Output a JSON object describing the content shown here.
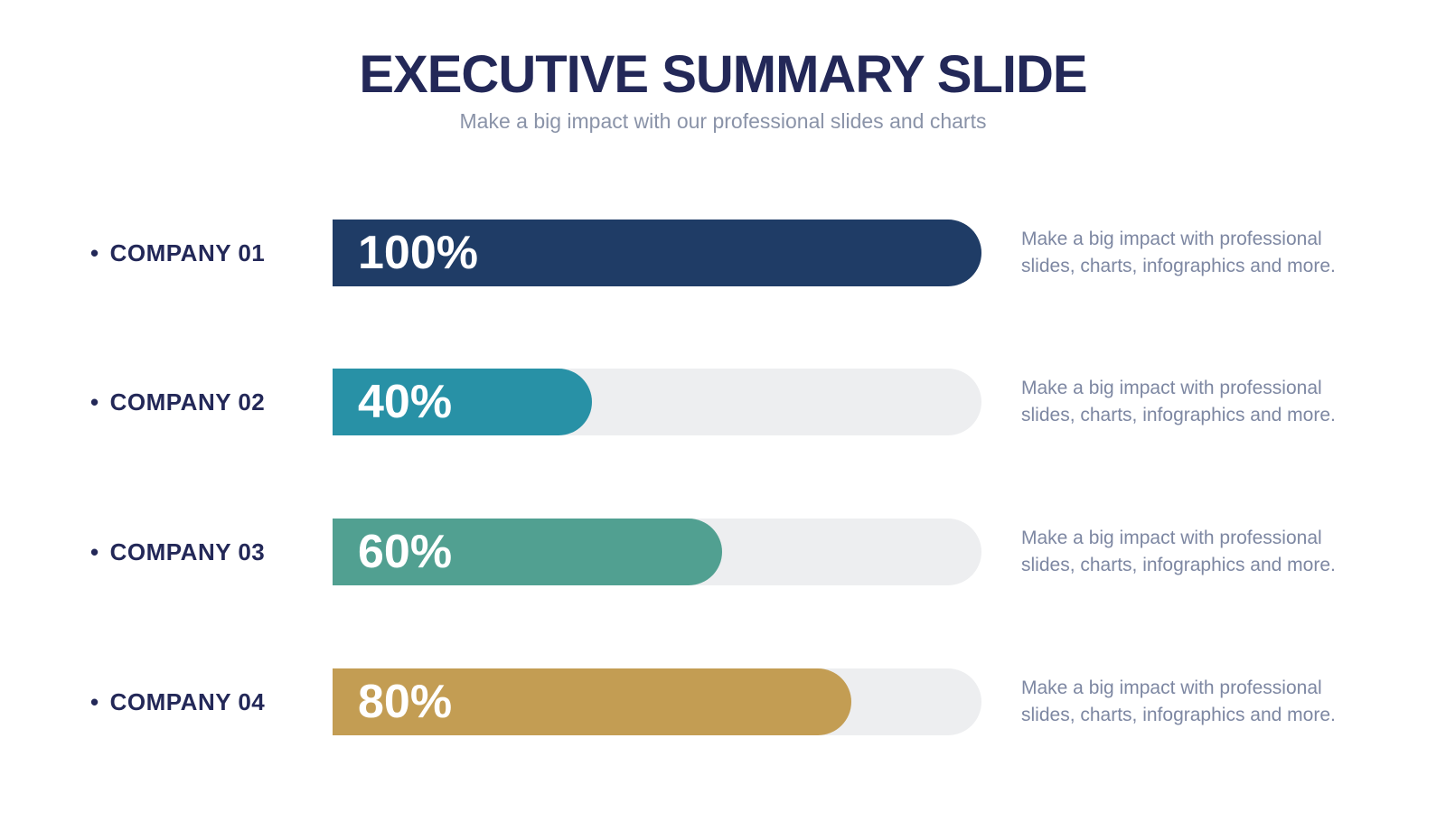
{
  "slide": {
    "title": "EXECUTIVE SUMMARY SLIDE",
    "subtitle": "Make a big impact with our professional slides and charts",
    "bullet": "•"
  },
  "colors": {
    "title_text": "#232858",
    "subtitle_text": "#8A93A8",
    "label_text": "#232858",
    "description_text": "#7D87A2",
    "track": "#EDEEF0"
  },
  "rows": [
    {
      "label": "COMPANY 01",
      "value": 100,
      "value_label": "100%",
      "color": "#1F3C66",
      "description": "Make a big impact with professional slides, charts, infographics and more."
    },
    {
      "label": "COMPANY 02",
      "value": 40,
      "value_label": "40%",
      "color": "#2891A6",
      "description": "Make a big impact with professional slides, charts, infographics and more."
    },
    {
      "label": "COMPANY 03",
      "value": 60,
      "value_label": "60%",
      "color": "#51A091",
      "description": "Make a big impact with professional slides, charts, infographics and more."
    },
    {
      "label": "COMPANY 04",
      "value": 80,
      "value_label": "80%",
      "color": "#C39D53",
      "description": "Make a big impact with professional slides, charts, infographics and more."
    }
  ],
  "chart_data": {
    "type": "bar",
    "orientation": "horizontal",
    "title": "EXECUTIVE SUMMARY SLIDE",
    "subtitle": "Make a big impact with our professional slides and charts",
    "categories": [
      "COMPANY 01",
      "COMPANY 02",
      "COMPANY 03",
      "COMPANY 04"
    ],
    "values": [
      100,
      40,
      60,
      80
    ],
    "value_labels": [
      "100%",
      "40%",
      "60%",
      "80%"
    ],
    "bar_colors": [
      "#1F3C66",
      "#2891A6",
      "#51A091",
      "#C39D53"
    ],
    "track_color": "#EDEEF0",
    "xlim": [
      0,
      100
    ],
    "grid": false,
    "legend": false,
    "value_label_position": "inside-left",
    "annotations": [
      "Make a big impact with professional slides, charts, infographics and more.",
      "Make a big impact with professional slides, charts, infographics and more.",
      "Make a big impact with professional slides, charts, infographics and more.",
      "Make a big impact with professional slides, charts, infographics and more."
    ]
  }
}
